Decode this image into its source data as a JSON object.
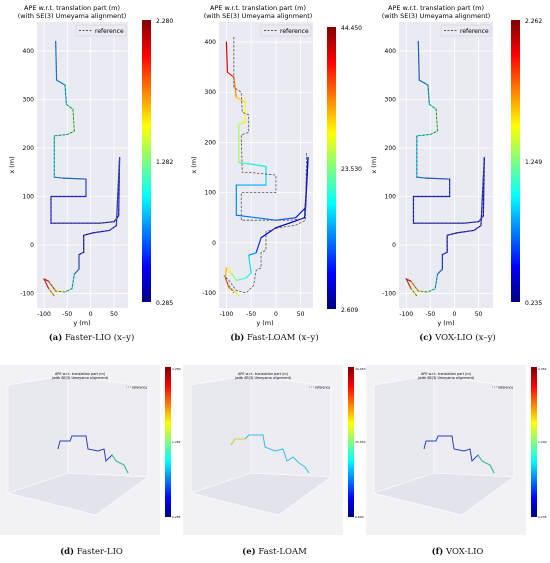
{
  "figure": {
    "top_panels": [
      {
        "id": "a",
        "title_line1": "APE w.r.t. translation part (m)",
        "title_line2": "(with SE(3) Umeyama alignment)",
        "legend": "reference",
        "xlabel": "y (m)",
        "ylabel": "x (m)",
        "cbar_max": "2.280",
        "cbar_mid": "1.282",
        "cbar_min": "0.285",
        "caption_tag": "(a)",
        "caption_text": "Faster-LIO (x–y)"
      },
      {
        "id": "b",
        "title_line1": "APE w.r.t. translation part (m)",
        "title_line2": "(with SE(3) Umeyama alignment)",
        "legend": "reference",
        "xlabel": "y (m)",
        "ylabel": "x (m)",
        "cbar_max": "44.450",
        "cbar_mid": "23.530",
        "cbar_min": "2.609",
        "caption_tag": "(b)",
        "caption_text": "Fast-LOAM (x–y)"
      },
      {
        "id": "c",
        "title_line1": "APE w.r.t. translation part (m)",
        "title_line2": "(with SE(3) Umeyama alignment)",
        "legend": "reference",
        "xlabel": "y (m)",
        "ylabel": "x (m)",
        "cbar_max": "2.262",
        "cbar_mid": "1.249",
        "cbar_min": "0.235",
        "caption_tag": "(c)",
        "caption_text": "VOX-LIO (x–y)"
      }
    ],
    "bottom_panels": [
      {
        "id": "d",
        "caption_tag": "(d)",
        "caption_text": "Faster-LIO",
        "title_line1": "APE w.r.t. translation part (m)",
        "title_line2": "(with SE(3) Umeyama alignment)",
        "legend": "reference",
        "cbar_max": "2.280",
        "cbar_mid": "1.282",
        "cbar_min": "0.285"
      },
      {
        "id": "e",
        "caption_tag": "(e)",
        "caption_text": "Fast-LOAM",
        "title_line1": "APE w.r.t. translation part (m)",
        "title_line2": "(with SE(3) Umeyama alignment)",
        "legend": "reference",
        "cbar_max": "44.450",
        "cbar_mid": "23.530",
        "cbar_min": "2.609"
      },
      {
        "id": "f",
        "caption_tag": "(f)",
        "caption_text": "VOX-LIO",
        "title_line1": "APE w.r.t. translation part (m)",
        "title_line2": "(with SE(3) Umeyama alignment)",
        "legend": "reference",
        "cbar_max": "2.262",
        "cbar_mid": "1.249",
        "cbar_min": "0.235"
      }
    ]
  },
  "colors": {
    "reference": "#555555",
    "panel_bg": "#eaeaf2",
    "grid": "#ffffff"
  },
  "chart_data": [
    {
      "type": "line",
      "panel": "a",
      "title": "APE w.r.t. translation part (m)\n(with SE(3) Umeyama alignment)",
      "xlabel": "y (m)",
      "ylabel": "x (m)",
      "xlim": [
        -115,
        80
      ],
      "ylim": [
        -130,
        460
      ],
      "xticks": [
        -100,
        -50,
        0,
        50
      ],
      "yticks": [
        -100,
        0,
        100,
        200,
        300,
        400
      ],
      "colorbar": {
        "min": 0.285,
        "mid": 1.282,
        "max": 2.28
      },
      "series": [
        {
          "name": "reference",
          "style": "dashed",
          "points": [
            [
              -75,
              420
            ],
            [
              -73,
              340
            ],
            [
              -55,
              330
            ],
            [
              -52,
              290
            ],
            [
              -38,
              280
            ],
            [
              -35,
              235
            ],
            [
              -50,
              228
            ],
            [
              -78,
              225
            ],
            [
              -78,
              140
            ],
            [
              -60,
              138
            ],
            [
              -10,
              136
            ],
            [
              -10,
              100
            ],
            [
              -85,
              100
            ],
            [
              -85,
              45
            ],
            [
              20,
              45
            ],
            [
              50,
              48
            ],
            [
              60,
              60
            ],
            [
              62,
              180
            ],
            [
              55,
              40
            ],
            [
              40,
              30
            ],
            [
              5,
              25
            ],
            [
              -15,
              20
            ],
            [
              -15,
              -15
            ],
            [
              -25,
              -20
            ],
            [
              -25,
              -50
            ],
            [
              -35,
              -60
            ],
            [
              -40,
              -90
            ],
            [
              -55,
              -97
            ],
            [
              -75,
              -95
            ],
            [
              -90,
              -75
            ],
            [
              -100,
              -70
            ],
            [
              -90,
              -90
            ],
            [
              -78,
              -105
            ]
          ]
        },
        {
          "name": "",
          "values": [
            0.8,
            0.8,
            0.9,
            1.0,
            1.3,
            1.3,
            1.2,
            1.1,
            0.9,
            0.8,
            0.7,
            0.6,
            0.5,
            0.5,
            0.4,
            0.4,
            0.5,
            0.6,
            0.6,
            0.5,
            0.4,
            0.4,
            0.5,
            0.6,
            0.7,
            0.9,
            1.1,
            1.3,
            1.6,
            2.0,
            2.2,
            1.8,
            1.5
          ],
          "points": [
            [
              -75,
              420
            ],
            [
              -73,
              340
            ],
            [
              -55,
              330
            ],
            [
              -52,
              290
            ],
            [
              -38,
              280
            ],
            [
              -35,
              235
            ],
            [
              -50,
              228
            ],
            [
              -78,
              225
            ],
            [
              -78,
              140
            ],
            [
              -60,
              138
            ],
            [
              -10,
              136
            ],
            [
              -10,
              100
            ],
            [
              -85,
              100
            ],
            [
              -85,
              45
            ],
            [
              20,
              45
            ],
            [
              50,
              48
            ],
            [
              60,
              60
            ],
            [
              62,
              180
            ],
            [
              55,
              40
            ],
            [
              40,
              30
            ],
            [
              5,
              25
            ],
            [
              -15,
              20
            ],
            [
              -15,
              -15
            ],
            [
              -25,
              -20
            ],
            [
              -25,
              -50
            ],
            [
              -35,
              -60
            ],
            [
              -40,
              -90
            ],
            [
              -55,
              -97
            ],
            [
              -75,
              -95
            ],
            [
              -90,
              -75
            ],
            [
              -100,
              -70
            ],
            [
              -90,
              -90
            ],
            [
              -78,
              -105
            ]
          ]
        }
      ]
    },
    {
      "type": "line",
      "panel": "b",
      "title": "APE w.r.t. translation part (m)\n(with SE(3) Umeyama alignment)",
      "xlabel": "y (m)",
      "ylabel": "x (m)",
      "xlim": [
        -115,
        75
      ],
      "ylim": [
        -130,
        440
      ],
      "xticks": [
        -100,
        -50,
        0,
        50
      ],
      "yticks": [
        -100,
        0,
        100,
        200,
        300,
        400
      ],
      "colorbar": {
        "min": 2.609,
        "mid": 23.53,
        "max": 44.45
      },
      "series": [
        {
          "name": "reference",
          "style": "dashed",
          "points": [
            [
              -85,
              410
            ],
            [
              -85,
              310
            ],
            [
              -70,
              300
            ],
            [
              -68,
              260
            ],
            [
              -55,
              255
            ],
            [
              -55,
              220
            ],
            [
              -70,
              215
            ],
            [
              -68,
              140
            ],
            [
              -50,
              140
            ],
            [
              0,
              135
            ],
            [
              0,
              100
            ],
            [
              -70,
              100
            ],
            [
              -70,
              45
            ],
            [
              30,
              45
            ],
            [
              55,
              48
            ],
            [
              60,
              60
            ],
            [
              62,
              180
            ],
            [
              60,
              45
            ],
            [
              40,
              35
            ],
            [
              5,
              30
            ],
            [
              -20,
              22
            ],
            [
              -20,
              -15
            ],
            [
              -30,
              -20
            ],
            [
              -30,
              -50
            ],
            [
              -40,
              -55
            ],
            [
              -45,
              -85
            ],
            [
              -60,
              -100
            ],
            [
              -80,
              -95
            ],
            [
              -95,
              -75
            ],
            [
              -105,
              -65
            ],
            [
              -95,
              -85
            ],
            [
              -85,
              -100
            ]
          ]
        },
        {
          "name": "",
          "values": [
            42,
            40,
            36,
            32,
            30,
            28,
            26,
            24,
            20,
            18,
            16,
            14,
            13,
            12,
            10,
            8,
            6,
            5,
            4,
            4,
            8,
            12,
            16,
            18,
            20,
            22,
            26,
            30,
            34,
            36,
            30,
            24
          ],
          "points": [
            [
              -100,
              400
            ],
            [
              -98,
              340
            ],
            [
              -85,
              330
            ],
            [
              -80,
              290
            ],
            [
              -62,
              280
            ],
            [
              -62,
              240
            ],
            [
              -75,
              236
            ],
            [
              -75,
              160
            ],
            [
              -58,
              158
            ],
            [
              -20,
              152
            ],
            [
              -20,
              115
            ],
            [
              -80,
              115
            ],
            [
              -80,
              55
            ],
            [
              0,
              45
            ],
            [
              40,
              50
            ],
            [
              60,
              70
            ],
            [
              65,
              170
            ],
            [
              58,
              50
            ],
            [
              30,
              40
            ],
            [
              0,
              30
            ],
            [
              -30,
              10
            ],
            [
              -40,
              -20
            ],
            [
              -55,
              -25
            ],
            [
              -50,
              -60
            ],
            [
              -60,
              -70
            ],
            [
              -80,
              -75
            ],
            [
              -90,
              -60
            ],
            [
              -100,
              -50
            ],
            [
              -102,
              -70
            ],
            [
              -95,
              -90
            ],
            [
              -85,
              -95
            ],
            [
              -75,
              -105
            ]
          ]
        }
      ]
    },
    {
      "type": "line",
      "panel": "c",
      "title": "APE w.r.t. translation part (m)\n(with SE(3) Umeyama alignment)",
      "xlabel": "y (m)",
      "ylabel": "x (m)",
      "xlim": [
        -115,
        80
      ],
      "ylim": [
        -130,
        460
      ],
      "xticks": [
        -100,
        -50,
        0,
        50
      ],
      "yticks": [
        -100,
        0,
        100,
        200,
        300,
        400
      ],
      "colorbar": {
        "min": 0.235,
        "mid": 1.249,
        "max": 2.262
      },
      "series": [
        {
          "name": "reference",
          "style": "dashed",
          "points": [
            [
              -75,
              420
            ],
            [
              -73,
              340
            ],
            [
              -55,
              330
            ],
            [
              -52,
              290
            ],
            [
              -38,
              280
            ],
            [
              -35,
              235
            ],
            [
              -50,
              228
            ],
            [
              -78,
              225
            ],
            [
              -78,
              140
            ],
            [
              -60,
              138
            ],
            [
              -10,
              136
            ],
            [
              -10,
              100
            ],
            [
              -85,
              100
            ],
            [
              -85,
              45
            ],
            [
              20,
              45
            ],
            [
              50,
              48
            ],
            [
              60,
              60
            ],
            [
              62,
              180
            ],
            [
              55,
              40
            ],
            [
              40,
              30
            ],
            [
              5,
              25
            ],
            [
              -15,
              20
            ],
            [
              -15,
              -15
            ],
            [
              -25,
              -20
            ],
            [
              -25,
              -50
            ],
            [
              -35,
              -60
            ],
            [
              -40,
              -90
            ],
            [
              -55,
              -97
            ],
            [
              -75,
              -95
            ],
            [
              -90,
              -75
            ],
            [
              -100,
              -70
            ],
            [
              -90,
              -90
            ],
            [
              -78,
              -105
            ]
          ]
        },
        {
          "name": "",
          "values": [
            0.7,
            0.7,
            0.8,
            0.9,
            1.2,
            1.3,
            1.1,
            1.0,
            0.8,
            0.7,
            0.6,
            0.5,
            0.4,
            0.4,
            0.35,
            0.35,
            0.4,
            0.5,
            0.5,
            0.4,
            0.35,
            0.35,
            0.4,
            0.5,
            0.6,
            0.8,
            1.0,
            1.2,
            1.5,
            1.9,
            2.2,
            1.7,
            1.4
          ],
          "points": [
            [
              -75,
              420
            ],
            [
              -73,
              340
            ],
            [
              -55,
              330
            ],
            [
              -52,
              290
            ],
            [
              -38,
              280
            ],
            [
              -35,
              235
            ],
            [
              -50,
              228
            ],
            [
              -78,
              225
            ],
            [
              -78,
              140
            ],
            [
              -60,
              138
            ],
            [
              -10,
              136
            ],
            [
              -10,
              100
            ],
            [
              -85,
              100
            ],
            [
              -85,
              45
            ],
            [
              20,
              45
            ],
            [
              50,
              48
            ],
            [
              60,
              60
            ],
            [
              62,
              180
            ],
            [
              55,
              40
            ],
            [
              40,
              30
            ],
            [
              5,
              25
            ],
            [
              -15,
              20
            ],
            [
              -15,
              -15
            ],
            [
              -25,
              -20
            ],
            [
              -25,
              -50
            ],
            [
              -35,
              -60
            ],
            [
              -40,
              -90
            ],
            [
              -55,
              -97
            ],
            [
              -75,
              -95
            ],
            [
              -90,
              -75
            ],
            [
              -100,
              -70
            ],
            [
              -90,
              -90
            ],
            [
              -78,
              -105
            ]
          ]
        }
      ]
    }
  ]
}
